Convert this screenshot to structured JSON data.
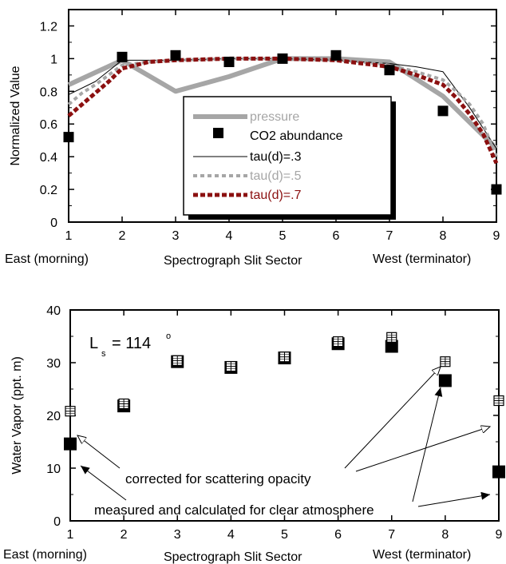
{
  "colors": {
    "pressure": "#a6a6a6",
    "co2": "#000000",
    "tau3": "#000000",
    "tau5": "#a6a6a6",
    "tau7": "#8b1010",
    "corrected": "#000000",
    "measured": "#000000",
    "axis": "#000000"
  },
  "chart_data": [
    {
      "type": "line",
      "xlabel": "Spectrograph Slit Sector",
      "xlabel_left": "East (morning)",
      "xlabel_right": "West (terminator)",
      "ylabel": "Normalized Value",
      "xlim": [
        1,
        9
      ],
      "ylim": [
        0,
        1.3
      ],
      "xticks": [
        "1",
        "2",
        "3",
        "4",
        "5",
        "6",
        "7",
        "8",
        "9"
      ],
      "yticks": [
        "0",
        "0.2",
        "0.4",
        "0.6",
        "0.8",
        "1",
        "1.2"
      ],
      "legend_position": "center-right",
      "x": [
        1,
        2,
        3,
        4,
        5,
        6,
        7,
        8,
        9
      ],
      "series": [
        {
          "name": "pressure",
          "style": "thick-gray-line",
          "x": [
            1,
            2,
            3,
            4,
            5,
            6,
            7,
            8,
            9
          ],
          "values": [
            0.84,
            0.99,
            0.8,
            0.89,
            1.0,
            1.0,
            0.98,
            0.77,
            0.45
          ]
        },
        {
          "name": "CO2 abundance",
          "style": "black-square",
          "x": [
            1,
            2,
            3,
            4,
            5,
            6,
            7,
            8,
            9
          ],
          "values": [
            0.52,
            1.01,
            1.02,
            0.98,
            1.0,
            1.02,
            0.93,
            0.68,
            0.2
          ]
        },
        {
          "name": "tau(d)=.3",
          "style": "thin-black-line",
          "x": [
            1,
            1.5,
            2,
            3,
            4,
            5,
            6,
            7,
            7.5,
            8,
            8.5,
            9
          ],
          "values": [
            0.78,
            0.86,
            0.99,
            0.99,
            1.0,
            1.0,
            0.99,
            0.97,
            0.95,
            0.92,
            0.7,
            0.45
          ]
        },
        {
          "name": "tau(d)=.5",
          "style": "gray-dotted",
          "x": [
            1,
            1.25,
            1.5,
            1.75,
            2,
            2.5,
            3,
            4,
            5,
            6,
            6.5,
            7,
            7.5,
            8,
            8.25,
            8.5,
            8.75,
            9
          ],
          "values": [
            0.72,
            0.79,
            0.84,
            0.9,
            0.96,
            0.98,
            0.99,
            1.0,
            1.0,
            0.99,
            0.98,
            0.96,
            0.92,
            0.87,
            0.8,
            0.72,
            0.6,
            0.4
          ]
        },
        {
          "name": "tau(d)=.7",
          "style": "red-dotted",
          "x": [
            1,
            1.25,
            1.5,
            1.75,
            2,
            2.5,
            3,
            4,
            5,
            6,
            6.5,
            7,
            7.5,
            8,
            8.25,
            8.5,
            8.75,
            9
          ],
          "values": [
            0.65,
            0.72,
            0.79,
            0.86,
            0.94,
            0.98,
            0.99,
            1.0,
            1.0,
            0.99,
            0.97,
            0.95,
            0.9,
            0.84,
            0.76,
            0.66,
            0.54,
            0.36
          ]
        }
      ]
    },
    {
      "type": "scatter",
      "xlabel": "Spectrograph Slit Sector",
      "xlabel_left": "East (morning)",
      "xlabel_right": "West (terminator)",
      "ylabel": "Water Vapor  (ppt.  m)",
      "xlim": [
        1,
        9
      ],
      "ylim": [
        0,
        40
      ],
      "xticks": [
        "1",
        "2",
        "3",
        "4",
        "5",
        "6",
        "7",
        "8",
        "9"
      ],
      "yticks": [
        "0",
        "10",
        "20",
        "30",
        "40"
      ],
      "series": [
        {
          "name": "corrected for scattering opacity",
          "style": "hatched-square",
          "x": [
            1,
            2,
            3,
            4,
            5,
            6,
            7,
            8,
            9
          ],
          "values": [
            20.8,
            22.2,
            30.4,
            29.3,
            31.1,
            34.0,
            34.8,
            30.2,
            22.8
          ]
        },
        {
          "name": "measured and calculated for clear atmosphere",
          "style": "black-square",
          "x": [
            1,
            2,
            3,
            4,
            5,
            6,
            7,
            8,
            9
          ],
          "values": [
            14.6,
            21.8,
            30.2,
            29.1,
            30.9,
            33.6,
            33.1,
            26.6,
            9.3
          ]
        }
      ],
      "annotations": {
        "ls_label": "L",
        "ls_sub": "s",
        "ls_value": "= 114",
        "ls_sup": "o",
        "corrected": "corrected for scattering opacity",
        "measured": "measured and calculated for clear atmosphere"
      }
    }
  ]
}
